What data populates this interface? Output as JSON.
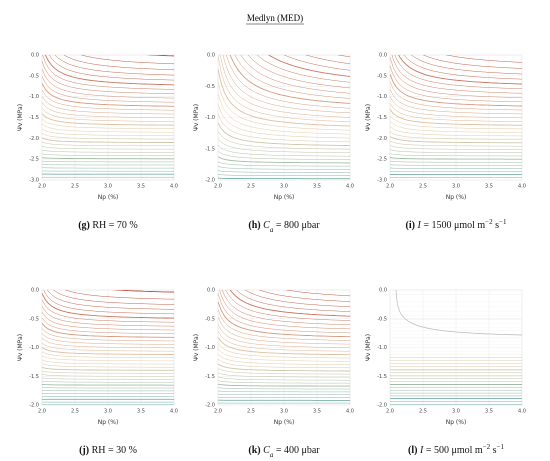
{
  "title": "Medlyn (MED)",
  "panels": [
    {
      "ylabel": "Ψv (MPa)",
      "xlabel": "Np (%)",
      "ylim": [
        -3.0,
        0.0
      ],
      "yticks": [
        {
          "value": 0,
          "label": "0.0"
        },
        -0.5,
        {
          "value": -1,
          "label": "-1.0"
        },
        -1.5,
        {
          "value": -2,
          "label": "-2.0"
        },
        -2.5,
        {
          "value": -3,
          "label": "-3.0"
        }
      ],
      "xlim": [
        2,
        4
      ],
      "xticks": [
        {
          "value": 2,
          "label": "2.0"
        },
        2.5,
        {
          "value": 3,
          "label": "3.0"
        },
        3.5,
        {
          "value": 4,
          "label": "4.0"
        }
      ],
      "caption": [
        {
          "text": "(g)",
          "style": "bold"
        },
        {
          "text": " RH = 70 %",
          "style": "normal"
        }
      ]
    },
    {
      "ylabel": "Ψv (MPa)",
      "xlabel": "Np (%)",
      "ylim": [
        -2.0,
        0.0
      ],
      "yticks": [
        {
          "value": 0,
          "label": "0.0"
        },
        -0.5,
        {
          "value": -1,
          "label": "-1.0"
        },
        -1.5,
        {
          "value": -2,
          "label": "-2.0"
        }
      ],
      "xlim": [
        2,
        4
      ],
      "xticks": [
        {
          "value": 2,
          "label": "2.0"
        },
        2.5,
        {
          "value": 3,
          "label": "3.0"
        },
        3.5,
        {
          "value": 4,
          "label": "4.0"
        }
      ],
      "caption": [
        {
          "text": "(h)",
          "style": "bold"
        },
        {
          "text": " C",
          "style": "italic"
        },
        {
          "text": "a",
          "style": "sub"
        },
        {
          "text": " = 800 μbar",
          "style": "normal"
        }
      ]
    },
    {
      "ylabel": "Ψv (MPa)",
      "xlabel": "Np (%)",
      "ylim": [
        -3.0,
        0.0
      ],
      "yticks": [
        {
          "value": 0,
          "label": "0.0"
        },
        -0.5,
        {
          "value": -1,
          "label": "-1.0"
        },
        -1.5,
        {
          "value": -2,
          "label": "-2.0"
        },
        -2.5,
        {
          "value": -3,
          "label": "-3.0"
        }
      ],
      "xlim": [
        2,
        4
      ],
      "xticks": [
        {
          "value": 2,
          "label": "2.0"
        },
        2.5,
        {
          "value": 3,
          "label": "3.0"
        },
        3.5,
        {
          "value": 4,
          "label": "4.0"
        }
      ],
      "caption": [
        {
          "text": "(i)",
          "style": "bold"
        },
        {
          "text": " I",
          "style": "italic"
        },
        {
          "text": " = 1500 μmol m",
          "style": "normal"
        },
        {
          "text": "−2",
          "style": "sup"
        },
        {
          "text": " s",
          "style": "normal"
        },
        {
          "text": "−1",
          "style": "sup"
        }
      ]
    },
    {
      "ylabel": "Ψv (MPa)",
      "xlabel": "Np (%)",
      "ylim": [
        -2.0,
        0.0
      ],
      "yticks": [
        {
          "value": 0,
          "label": "0.0"
        },
        -0.5,
        {
          "value": -1,
          "label": "-1.0"
        },
        -1.5,
        {
          "value": -2,
          "label": "-2.0"
        }
      ],
      "xlim": [
        2,
        4
      ],
      "xticks": [
        {
          "value": 2,
          "label": "2.0"
        },
        2.5,
        {
          "value": 3,
          "label": "3.0"
        },
        3.5,
        {
          "value": 4,
          "label": "4.0"
        }
      ],
      "caption": [
        {
          "text": "(j)",
          "style": "bold"
        },
        {
          "text": " RH = 30 %",
          "style": "normal"
        }
      ]
    },
    {
      "ylabel": "Ψv (MPa)",
      "xlabel": "Np (%)",
      "ylim": [
        -2.0,
        0.0
      ],
      "yticks": [
        {
          "value": 0,
          "label": "0.0"
        },
        -0.5,
        {
          "value": -1,
          "label": "-1.0"
        },
        -1.5,
        {
          "value": -2,
          "label": "-2.0"
        }
      ],
      "xlim": [
        2,
        4
      ],
      "xticks": [
        {
          "value": 2,
          "label": "2.0"
        },
        2.5,
        {
          "value": 3,
          "label": "3.0"
        },
        3.5,
        {
          "value": 4,
          "label": "4.0"
        }
      ],
      "caption": [
        {
          "text": "(k)",
          "style": "bold"
        },
        {
          "text": " C",
          "style": "italic"
        },
        {
          "text": "a",
          "style": "sub"
        },
        {
          "text": " = 400 μbar",
          "style": "normal"
        }
      ]
    },
    {
      "ylabel": "Ψv (MPa)",
      "xlabel": "Np (%)",
      "ylim": [
        -2.0,
        0.0
      ],
      "yticks": [
        {
          "value": 0,
          "label": "0.0"
        },
        -0.5,
        {
          "value": -1,
          "label": "-1.0"
        },
        -1.5,
        {
          "value": -2,
          "label": "-2.0"
        }
      ],
      "xlim": [
        2,
        4
      ],
      "xticks": [
        {
          "value": 2,
          "label": "2.0"
        },
        2.5,
        {
          "value": 3,
          "label": "3.0"
        },
        3.5,
        {
          "value": 4,
          "label": "4.0"
        }
      ],
      "caption": [
        {
          "text": "(l)",
          "style": "bold"
        },
        {
          "text": " I",
          "style": "italic"
        },
        {
          "text": " = 500 μmol m",
          "style": "normal"
        },
        {
          "text": "−2",
          "style": "sup"
        },
        {
          "text": " s",
          "style": "normal"
        },
        {
          "text": "−1",
          "style": "sup"
        }
      ]
    }
  ]
}
